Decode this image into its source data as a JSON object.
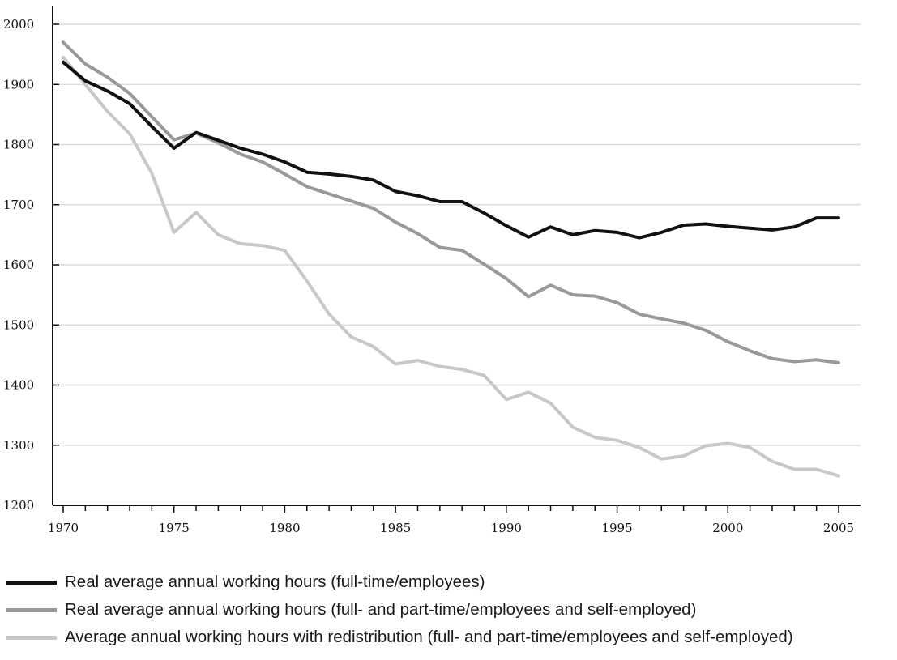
{
  "chart_data": {
    "type": "line",
    "title": "",
    "xlabel": "",
    "ylabel": "",
    "xlim": [
      1970,
      2005
    ],
    "ylim": [
      1200,
      2000
    ],
    "x_ticks": [
      1970,
      1975,
      1980,
      1985,
      1990,
      1995,
      2000,
      2005
    ],
    "y_ticks": [
      1200,
      1300,
      1400,
      1500,
      1600,
      1700,
      1800,
      1900,
      2000
    ],
    "grid": "horizontal",
    "legend_position": "bottom",
    "x": [
      1970,
      1971,
      1972,
      1973,
      1974,
      1975,
      1976,
      1977,
      1978,
      1979,
      1980,
      1981,
      1982,
      1983,
      1984,
      1985,
      1986,
      1987,
      1988,
      1989,
      1990,
      1991,
      1992,
      1993,
      1994,
      1995,
      1996,
      1997,
      1998,
      1999,
      2000,
      2001,
      2002,
      2003,
      2004,
      2005
    ],
    "series": [
      {
        "name": "Real average annual working hours (full-time/employees)",
        "color": "#111111",
        "values": [
          1937,
          1906,
          1889,
          1868,
          1830,
          1794,
          1820,
          1807,
          1794,
          1784,
          1771,
          1754,
          1751,
          1747,
          1741,
          1722,
          1715,
          1705,
          1705,
          1686,
          1665,
          1646,
          1663,
          1650,
          1657,
          1654,
          1645,
          1654,
          1666,
          1668,
          1664,
          1661,
          1658,
          1663,
          1678,
          1678
        ]
      },
      {
        "name": "Real average annual working hours (full- and part-time/employees and self-employed)",
        "color": "#999999",
        "values": [
          1970,
          1934,
          1912,
          1885,
          1846,
          1808,
          1819,
          1803,
          1784,
          1771,
          1751,
          1730,
          1718,
          1706,
          1694,
          1671,
          1652,
          1629,
          1624,
          1601,
          1577,
          1547,
          1566,
          1550,
          1548,
          1537,
          1518,
          1510,
          1503,
          1491,
          1472,
          1457,
          1444,
          1439,
          1442,
          1437
        ]
      },
      {
        "name": "Average annual working hours with redistribution (full- and part-time/employees and self-employed)",
        "color": "#c8c8c8",
        "values": [
          1945,
          1900,
          1855,
          1818,
          1752,
          1654,
          1687,
          1650,
          1635,
          1632,
          1624,
          1573,
          1518,
          1480,
          1464,
          1435,
          1441,
          1431,
          1426,
          1416,
          1376,
          1388,
          1370,
          1330,
          1313,
          1308,
          1296,
          1277,
          1282,
          1299,
          1303,
          1296,
          1273,
          1260,
          1260,
          1249
        ]
      }
    ]
  }
}
